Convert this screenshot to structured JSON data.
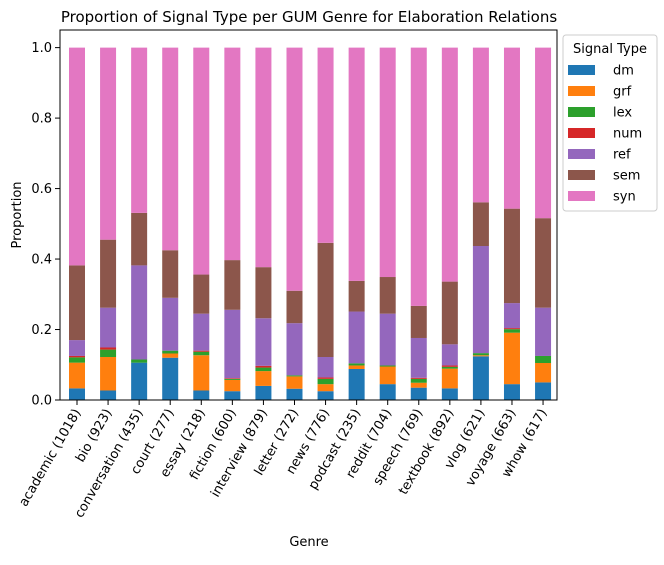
{
  "chart_data": {
    "type": "bar",
    "stacked": true,
    "title": "Proportion of Signal Type per GUM Genre for Elaboration Relations",
    "xlabel": "Genre",
    "ylabel": "Proportion",
    "ylim": [
      0,
      1.05
    ],
    "yticks": [
      0.0,
      0.2,
      0.4,
      0.6,
      0.8,
      1.0
    ],
    "ytick_labels": [
      "0.0",
      "0.2",
      "0.4",
      "0.6",
      "0.8",
      "1.0"
    ],
    "grid": false,
    "legend": {
      "title": "Signal Type",
      "placement": "outside-right-top"
    },
    "categories": [
      "academic (1018)",
      "bio (923)",
      "conversation (435)",
      "court (277)",
      "essay (218)",
      "fiction (600)",
      "interview (879)",
      "letter (272)",
      "news (776)",
      "podcast (235)",
      "reddit (704)",
      "speech (769)",
      "textbook (892)",
      "vlog (621)",
      "voyage (663)",
      "whow (617)"
    ],
    "series": [
      {
        "name": "dm",
        "color": "#1f77b4",
        "values": [
          0.033,
          0.027,
          0.106,
          0.12,
          0.027,
          0.025,
          0.04,
          0.032,
          0.025,
          0.088,
          0.045,
          0.035,
          0.033,
          0.124,
          0.045,
          0.05
        ]
      },
      {
        "name": "grf",
        "color": "#ff7f0e",
        "values": [
          0.073,
          0.095,
          0.0,
          0.012,
          0.1,
          0.032,
          0.042,
          0.035,
          0.02,
          0.01,
          0.05,
          0.014,
          0.056,
          0.003,
          0.146,
          0.055
        ]
      },
      {
        "name": "lex",
        "color": "#2ca02c",
        "values": [
          0.015,
          0.021,
          0.009,
          0.008,
          0.01,
          0.003,
          0.01,
          0.003,
          0.015,
          0.006,
          0.003,
          0.011,
          0.005,
          0.006,
          0.01,
          0.02
        ]
      },
      {
        "name": "num",
        "color": "#d62728",
        "values": [
          0.004,
          0.006,
          0.0,
          0.0,
          0.003,
          0.002,
          0.005,
          0.0,
          0.004,
          0.0,
          0.0,
          0.003,
          0.004,
          0.0,
          0.003,
          0.0
        ]
      },
      {
        "name": "ref",
        "color": "#9467bd",
        "values": [
          0.045,
          0.113,
          0.267,
          0.15,
          0.105,
          0.194,
          0.135,
          0.148,
          0.058,
          0.147,
          0.147,
          0.113,
          0.06,
          0.304,
          0.071,
          0.137
        ]
      },
      {
        "name": "sem",
        "color": "#8c564b",
        "values": [
          0.212,
          0.193,
          0.149,
          0.135,
          0.111,
          0.141,
          0.145,
          0.092,
          0.324,
          0.087,
          0.104,
          0.091,
          0.178,
          0.124,
          0.268,
          0.254
        ]
      },
      {
        "name": "syn",
        "color": "#e377c2",
        "values": [
          0.618,
          0.545,
          0.469,
          0.575,
          0.644,
          0.603,
          0.623,
          0.69,
          0.554,
          0.662,
          0.651,
          0.733,
          0.664,
          0.439,
          0.457,
          0.484
        ]
      }
    ]
  }
}
